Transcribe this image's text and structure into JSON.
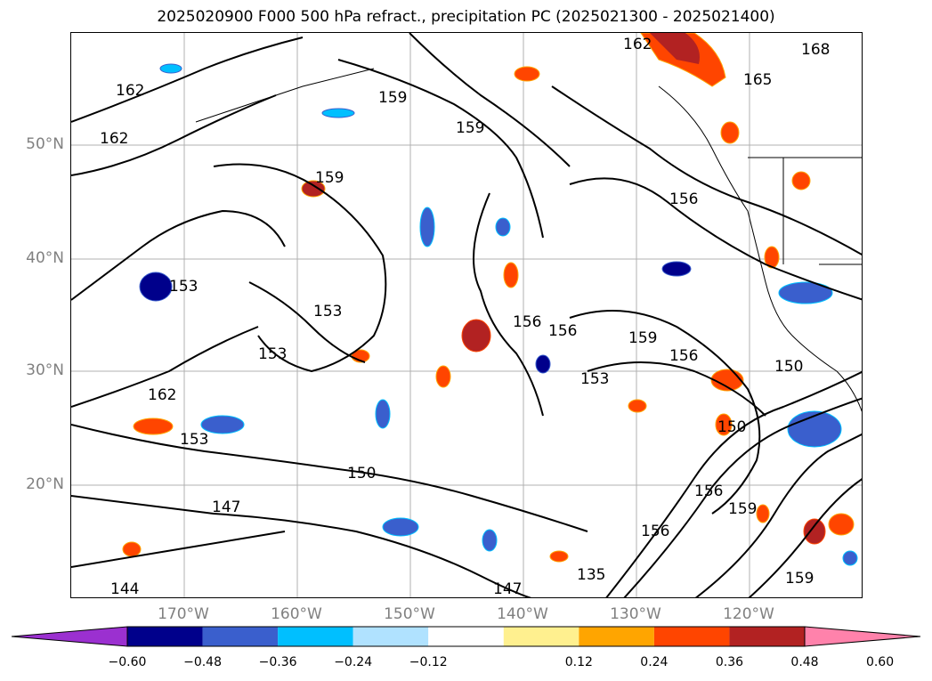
{
  "title": "2025020900 F000 500 hPa refract., precipitation PC (2025021300 - 2025021400)",
  "map": {
    "lat_labels": [
      "50°N",
      "40°N",
      "30°N",
      "20°N"
    ],
    "lon_labels": [
      "170°W",
      "160°W",
      "150°W",
      "140°W",
      "130°W",
      "120°W"
    ],
    "contour_labels": [
      "162",
      "168",
      "165",
      "159",
      "159",
      "159",
      "162",
      "156",
      "156",
      "153",
      "153",
      "156",
      "156",
      "159",
      "153",
      "150",
      "150",
      "147",
      "144",
      "147",
      "162",
      "153",
      "150",
      "159",
      "135",
      "156",
      "162",
      "153",
      "159",
      "156"
    ]
  },
  "colorbar": {
    "ticks": [
      "−0.60",
      "−0.48",
      "−0.36",
      "−0.24",
      "−0.12",
      "0.12",
      "0.24",
      "0.36",
      "0.48",
      "0.60"
    ],
    "colors": [
      "#9b30d0",
      "#00008b",
      "#3a5fcd",
      "#00bfff",
      "#b0e2ff",
      "#ffffff",
      "#fff08f",
      "#ffa500",
      "#ff4500",
      "#b22222",
      "#ff82ab"
    ]
  }
}
